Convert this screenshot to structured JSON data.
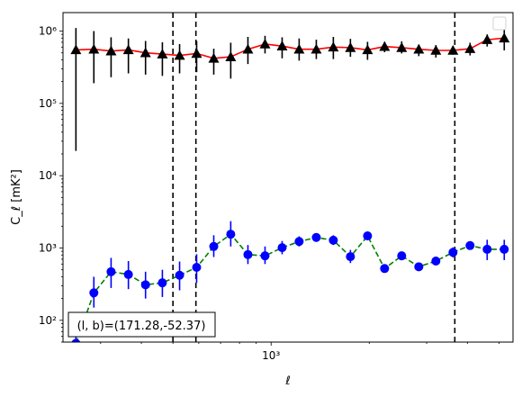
{
  "chart_data": {
    "type": "scatter",
    "xscale": "log",
    "yscale": "log",
    "xlim": [
      230,
      5520
    ],
    "ylim": [
      50,
      1800000
    ],
    "xlabel": "ℓ",
    "ylabel": "C_ℓ [mK²]",
    "y_ticks": [
      {
        "value": 100,
        "label": "10²"
      },
      {
        "value": 1000,
        "label": "10³"
      },
      {
        "value": 10000,
        "label": "10⁴"
      },
      {
        "value": 100000,
        "label": "10⁵"
      },
      {
        "value": 1000000,
        "label": "10⁶"
      }
    ],
    "x_ticks": [
      {
        "value": 1000,
        "label": "10³"
      }
    ],
    "legend": {
      "placement": "upper right",
      "entries": []
    },
    "annotation": "(l, b)=(171.28,-52.37)",
    "vlines": [
      500,
      588,
      3660
    ],
    "series": [
      {
        "style": "markers-with-errorbars",
        "marker": "triangle-up",
        "color": "#000000",
        "fit_color": "#ff0000",
        "x": [
          252,
          286,
          323,
          365,
          412,
          464,
          524,
          591,
          667,
          752,
          849,
          958,
          1081,
          1219,
          1376,
          1552,
          1751,
          1976,
          2229,
          2515,
          2838,
          3202,
          3613,
          4076,
          4599,
          5189
        ],
        "y": [
          550000,
          560000,
          530000,
          550000,
          500000,
          480000,
          460000,
          490000,
          420000,
          440000,
          560000,
          660000,
          620000,
          560000,
          560000,
          600000,
          590000,
          550000,
          610000,
          590000,
          560000,
          540000,
          540000,
          570000,
          760000,
          800000
        ],
        "y_low": [
          22000,
          190000,
          230000,
          260000,
          250000,
          240000,
          260000,
          270000,
          250000,
          220000,
          350000,
          490000,
          420000,
          390000,
          410000,
          410000,
          440000,
          400000,
          510000,
          490000,
          450000,
          430000,
          470000,
          460000,
          610000,
          540000
        ],
        "y_high": [
          1100000,
          1000000,
          820000,
          790000,
          730000,
          700000,
          660000,
          730000,
          570000,
          690000,
          830000,
          860000,
          820000,
          790000,
          760000,
          830000,
          780000,
          710000,
          710000,
          720000,
          650000,
          640000,
          620000,
          690000,
          900000,
          1050000
        ]
      },
      {
        "style": "markers-with-errorbars",
        "marker": "circle",
        "color": "#0000ff",
        "fit_color": "#008000",
        "x": [
          252,
          286,
          323,
          365,
          412,
          464,
          524,
          591,
          667,
          752,
          849,
          958,
          1081,
          1219,
          1376,
          1552,
          1751,
          1976,
          2229,
          2515,
          2838,
          3202,
          3613,
          4076,
          4599,
          5189
        ],
        "y": [
          48,
          240,
          470,
          430,
          310,
          330,
          420,
          540,
          1050,
          1550,
          810,
          780,
          1010,
          1230,
          1400,
          1280,
          760,
          1470,
          520,
          780,
          550,
          660,
          870,
          1080,
          960,
          960
        ],
        "y_low": [
          25,
          150,
          280,
          270,
          200,
          210,
          260,
          330,
          750,
          1050,
          600,
          600,
          820,
          1050,
          1220,
          1100,
          620,
          1300,
          470,
          720,
          490,
          580,
          740,
          950,
          680,
          680
        ],
        "y_high": [
          90,
          400,
          730,
          660,
          470,
          500,
          650,
          820,
          1500,
          2350,
          1100,
          1050,
          1250,
          1450,
          1600,
          1500,
          940,
          1650,
          570,
          850,
          610,
          760,
          1020,
          1230,
          1300,
          1300
        ]
      }
    ]
  }
}
